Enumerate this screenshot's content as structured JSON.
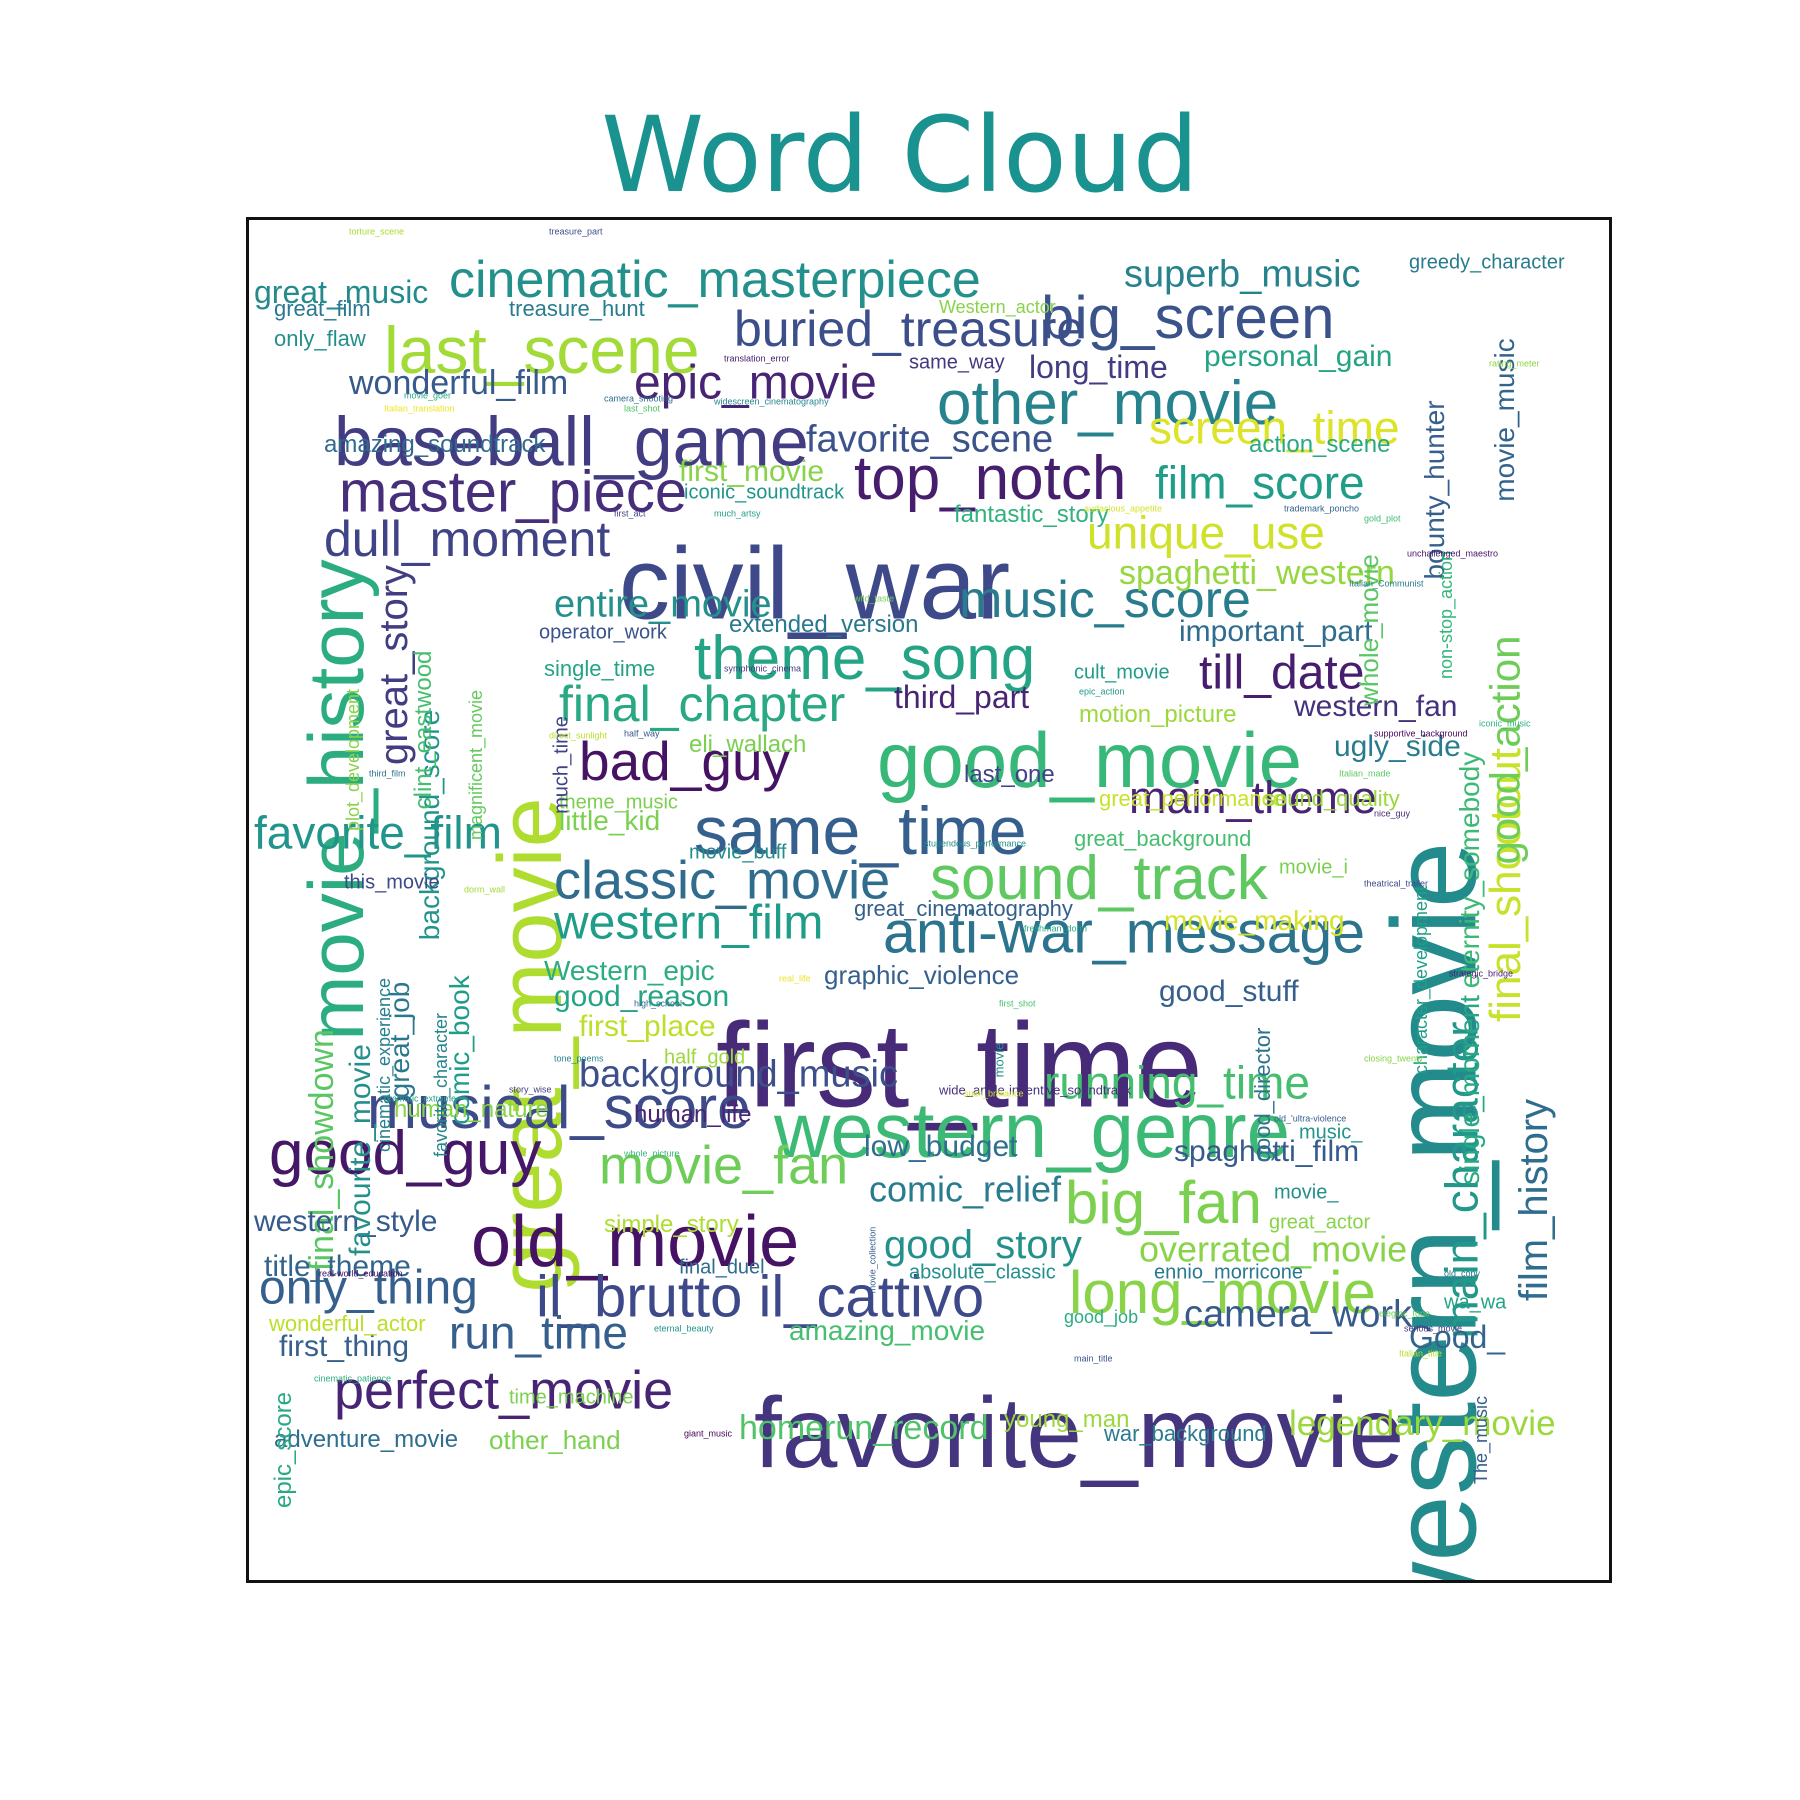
{
  "chart_data": {
    "type": "wordcloud",
    "title": "Word Cloud",
    "colormap": "viridis",
    "words": [
      {
        "text": "first_time",
        "weight": 100
      },
      {
        "text": "western_movie",
        "weight": 100
      },
      {
        "text": "civil_war",
        "weight": 84
      },
      {
        "text": "favorite_movie",
        "weight": 83
      },
      {
        "text": "great_movie",
        "weight": 74
      },
      {
        "text": "movie_history",
        "weight": 64
      },
      {
        "text": "western_genre",
        "weight": 66
      },
      {
        "text": "good_movie",
        "weight": 66
      },
      {
        "text": "old_movie",
        "weight": 59
      },
      {
        "text": "baseball_game",
        "weight": 58
      },
      {
        "text": "same_time",
        "weight": 56
      },
      {
        "text": "big_screen",
        "weight": 50
      },
      {
        "text": "last_scene",
        "weight": 57
      },
      {
        "text": "other_movie",
        "weight": 52
      },
      {
        "text": "sound_track",
        "weight": 53
      },
      {
        "text": "anti-war_message",
        "weight": 49
      },
      {
        "text": "il_brutto il_cattivo",
        "weight": 50
      },
      {
        "text": "long_movie",
        "weight": 52
      },
      {
        "text": "good_guy",
        "weight": 51
      },
      {
        "text": "musical_score",
        "weight": 51
      },
      {
        "text": "top_notch",
        "weight": 53
      },
      {
        "text": "big_fan",
        "weight": 52
      },
      {
        "text": "main_character",
        "weight": 45
      },
      {
        "text": "movie_fan",
        "weight": 45
      },
      {
        "text": "theme_song",
        "weight": 52
      },
      {
        "text": "final_shootout",
        "weight": 42
      },
      {
        "text": "cinematic_masterpiece",
        "weight": 45
      },
      {
        "text": "buried_treasure",
        "weight": 42
      },
      {
        "text": "master_piece",
        "weight": 48
      },
      {
        "text": "dull_moment",
        "weight": 42
      },
      {
        "text": "music_score",
        "weight": 44
      },
      {
        "text": "film_score",
        "weight": 42
      },
      {
        "text": "screen_time",
        "weight": 42
      },
      {
        "text": "classic_movie",
        "weight": 45
      },
      {
        "text": "epic_movie",
        "weight": 42
      },
      {
        "text": "bad_guy",
        "weight": 45
      },
      {
        "text": "final_chapter",
        "weight": 42
      },
      {
        "text": "western_film",
        "weight": 40
      },
      {
        "text": "unique_use",
        "weight": 38
      },
      {
        "text": "till_date",
        "weight": 40
      },
      {
        "text": "main_theme",
        "weight": 36
      },
      {
        "text": "good_action",
        "weight": 35
      },
      {
        "text": "film_history",
        "weight": 35
      },
      {
        "text": "great_story",
        "weight": 33
      },
      {
        "text": "run_time",
        "weight": 38
      },
      {
        "text": "perfect_movie",
        "weight": 45
      },
      {
        "text": "only_thing",
        "weight": 40
      },
      {
        "text": "favorite_film",
        "weight": 38
      },
      {
        "text": "running_time",
        "weight": 38
      },
      {
        "text": "camera_work",
        "weight": 34
      },
      {
        "text": "good_story",
        "weight": 34
      },
      {
        "text": "comic_relief",
        "weight": 30
      },
      {
        "text": "overrated_movie",
        "weight": 30
      },
      {
        "text": "legendary_movie",
        "weight": 29
      },
      {
        "text": "homerun_record",
        "weight": 28
      },
      {
        "text": "favorite_scene",
        "weight": 33
      },
      {
        "text": "entire_movie",
        "weight": 33
      },
      {
        "text": "spaghetti_western",
        "weight": 29
      },
      {
        "text": "wonderful_film",
        "weight": 29
      },
      {
        "text": "final_showdown",
        "weight": 29
      },
      {
        "text": "background_music",
        "weight": 32
      },
      {
        "text": "superb_music",
        "weight": 32
      },
      {
        "text": "first_movie",
        "weight": 25
      },
      {
        "text": "personal_gain",
        "weight": 25
      },
      {
        "text": "long_time",
        "weight": 25
      },
      {
        "text": "important_part",
        "weight": 25
      },
      {
        "text": "ugly_side",
        "weight": 25
      },
      {
        "text": "western_fan",
        "weight": 24
      },
      {
        "text": "third_part",
        "weight": 26
      },
      {
        "text": "great_music",
        "weight": 26
      },
      {
        "text": "spaghetti_film",
        "weight": 24
      },
      {
        "text": "single_moment",
        "weight": 24
      },
      {
        "text": "eternity_somebody",
        "weight": 24
      },
      {
        "text": "bounty_hunter",
        "weight": 24
      },
      {
        "text": "movie_music",
        "weight": 24
      },
      {
        "text": "good_reason",
        "weight": 25
      },
      {
        "text": "first_place",
        "weight": 25
      },
      {
        "text": "low_budget",
        "weight": 24
      },
      {
        "text": "western_style",
        "weight": 25
      },
      {
        "text": "title_theme",
        "weight": 25
      },
      {
        "text": "first_thing",
        "weight": 24
      },
      {
        "text": "favourite_movie",
        "weight": 24
      },
      {
        "text": "background_score",
        "weight": 24
      },
      {
        "text": "good_stuff",
        "weight": 23
      },
      {
        "text": "movie_making",
        "weight": 23
      },
      {
        "text": "amazing_movie",
        "weight": 22
      },
      {
        "text": "little_kid",
        "weight": 22
      },
      {
        "text": "great_job",
        "weight": 22
      },
      {
        "text": "comic_book",
        "weight": 22
      },
      {
        "text": "Western_epic",
        "weight": 21
      },
      {
        "text": "whole_movie",
        "weight": 20
      },
      {
        "text": "adventure_movie",
        "weight": 20
      },
      {
        "text": "other_hand",
        "weight": 21
      },
      {
        "text": "simple_story",
        "weight": 20
      },
      {
        "text": "graphic_violence",
        "weight": 20
      },
      {
        "text": "Good_",
        "weight": 24
      },
      {
        "text": "amazing_soundtrack",
        "weight": 20
      },
      {
        "text": "iconic_soundtrack",
        "weight": 17
      },
      {
        "text": "fantastic_story",
        "weight": 20
      },
      {
        "text": "action_scene",
        "weight": 20
      },
      {
        "text": "extended_version",
        "weight": 19
      },
      {
        "text": "clint_eastwood",
        "weight": 19
      },
      {
        "text": "plot_development",
        "weight": 15
      },
      {
        "text": "magnificent_movie",
        "weight": 15
      },
      {
        "text": "epic_score",
        "weight": 19
      },
      {
        "text": "great_performance",
        "weight": 20
      },
      {
        "text": "sound_quality",
        "weight": 18
      },
      {
        "text": "eli_wallach",
        "weight": 20
      },
      {
        "text": "motion_picture",
        "weight": 20
      },
      {
        "text": "treasure_hunt",
        "weight": 20
      },
      {
        "text": "great_film",
        "weight": 18
      },
      {
        "text": "only_flaw",
        "weight": 18
      },
      {
        "text": "greedy_character",
        "weight": 18
      },
      {
        "text": "young_man",
        "weight": 20
      },
      {
        "text": "war_background",
        "weight": 19
      },
      {
        "text": "human_nature",
        "weight": 18
      },
      {
        "text": "human_life",
        "weight": 18
      },
      {
        "text": "ennio_morricone",
        "weight": 16
      },
      {
        "text": "absolute_classic",
        "weight": 16
      },
      {
        "text": "final_duel",
        "weight": 17
      },
      {
        "text": "wonderful_actor",
        "weight": 18
      },
      {
        "text": "time_machine",
        "weight": 16
      },
      {
        "text": "great_cinematography",
        "weight": 17
      },
      {
        "text": "great_background",
        "weight": 17
      },
      {
        "text": "last_one",
        "weight": 20
      },
      {
        "text": "operator_work",
        "weight": 17
      },
      {
        "text": "single_time",
        "weight": 19
      },
      {
        "text": "theme_music",
        "weight": 17
      },
      {
        "text": "cult_movie",
        "weight": 17
      },
      {
        "text": "movie_buff",
        "weight": 17
      },
      {
        "text": "this_movie",
        "weight": 16
      },
      {
        "text": "movie_i",
        "weight": 16
      },
      {
        "text": "much_time",
        "weight": 16
      },
      {
        "text": "half_gold",
        "weight": 17
      },
      {
        "text": "cinematic_experience",
        "weight": 14
      },
      {
        "text": "favorite_character",
        "weight": 14
      },
      {
        "text": "character_development",
        "weight": 14
      },
      {
        "text": "non-stop_action",
        "weight": 14
      },
      {
        "text": "movie_",
        "weight": 17
      },
      {
        "text": "great_actor",
        "weight": 17
      },
      {
        "text": "music_",
        "weight": 17
      },
      {
        "text": "wa_wa",
        "weight": 17
      },
      {
        "text": "The_music",
        "weight": 14
      },
      {
        "text": "good_director",
        "weight": 21
      },
      {
        "text": "same_way",
        "weight": 16
      },
      {
        "text": "Western_actor",
        "weight": 15
      },
      {
        "text": "good_job",
        "weight": 15
      },
      {
        "text": "wide_angle",
        "weight": 12
      },
      {
        "text": "inventive_soundtrack",
        "weight": 12
      },
      {
        "text": "movie",
        "weight": 12
      },
      {
        "text": "movie_collection",
        "weight": 8
      },
      {
        "text": "torture_scene",
        "weight": 7
      },
      {
        "text": "treasure_part",
        "weight": 7
      },
      {
        "text": "movie_goer",
        "weight": 7
      },
      {
        "text": "Italian_translation",
        "weight": 7
      },
      {
        "text": "camera_shooting",
        "weight": 7
      },
      {
        "text": "last_shot",
        "weight": 7
      },
      {
        "text": "translation_error",
        "weight": 7
      },
      {
        "text": "widescreen_cinematography",
        "weight": 7
      },
      {
        "text": "rating_meter",
        "weight": 7
      },
      {
        "text": "first_act",
        "weight": 7
      },
      {
        "text": "much_artsy",
        "weight": 7
      },
      {
        "text": "audacious_appetite",
        "weight": 7
      },
      {
        "text": "trademark_poncho",
        "weight": 7
      },
      {
        "text": "gold_plot",
        "weight": 7
      },
      {
        "text": "unchallenged_maestro",
        "weight": 7
      },
      {
        "text": "Italian_Communist",
        "weight": 7
      },
      {
        "text": "wild_taste",
        "weight": 7
      },
      {
        "text": "symphonic_cinema",
        "weight": 7
      },
      {
        "text": "epic_action",
        "weight": 7
      },
      {
        "text": "direct_sunlight",
        "weight": 7
      },
      {
        "text": "half_way",
        "weight": 7
      },
      {
        "text": "iconic_music",
        "weight": 7
      },
      {
        "text": "supportive_background",
        "weight": 7
      },
      {
        "text": "third_film",
        "weight": 7
      },
      {
        "text": "Italian_made",
        "weight": 7
      },
      {
        "text": "nice_guy",
        "weight": 7
      },
      {
        "text": "stupendous_performance",
        "weight": 7
      },
      {
        "text": "dorm_wall",
        "weight": 7
      },
      {
        "text": "theatrical_trailer",
        "weight": 7
      },
      {
        "text": "freshman_dorm",
        "weight": 7
      },
      {
        "text": "real_life",
        "weight": 7
      },
      {
        "text": "high_school",
        "weight": 7
      },
      {
        "text": "first_shot",
        "weight": 7
      },
      {
        "text": "strategic_bridge",
        "weight": 7
      },
      {
        "text": "tone_poems",
        "weight": 7
      },
      {
        "text": "closing_twenty",
        "weight": 7
      },
      {
        "text": "story_wise",
        "weight": 7
      },
      {
        "text": "dramatic_extreme",
        "weight": 7
      },
      {
        "text": "such_brilliance",
        "weight": 7
      },
      {
        "text": "old_'ultra-violence",
        "weight": 7
      },
      {
        "text": "whole_picture",
        "weight": 7
      },
      {
        "text": "real-world_education",
        "weight": 7
      },
      {
        "text": "old_copy",
        "weight": 7
      },
      {
        "text": "elegiac_tone",
        "weight": 7
      },
      {
        "text": "serious_movie",
        "weight": 7
      },
      {
        "text": "eternal_beauty",
        "weight": 7
      },
      {
        "text": "Italian_title",
        "weight": 7
      },
      {
        "text": "main_title",
        "weight": 7
      },
      {
        "text": "cinematic_patience",
        "weight": 7
      },
      {
        "text": "giant_music",
        "weight": 7
      }
    ]
  }
}
